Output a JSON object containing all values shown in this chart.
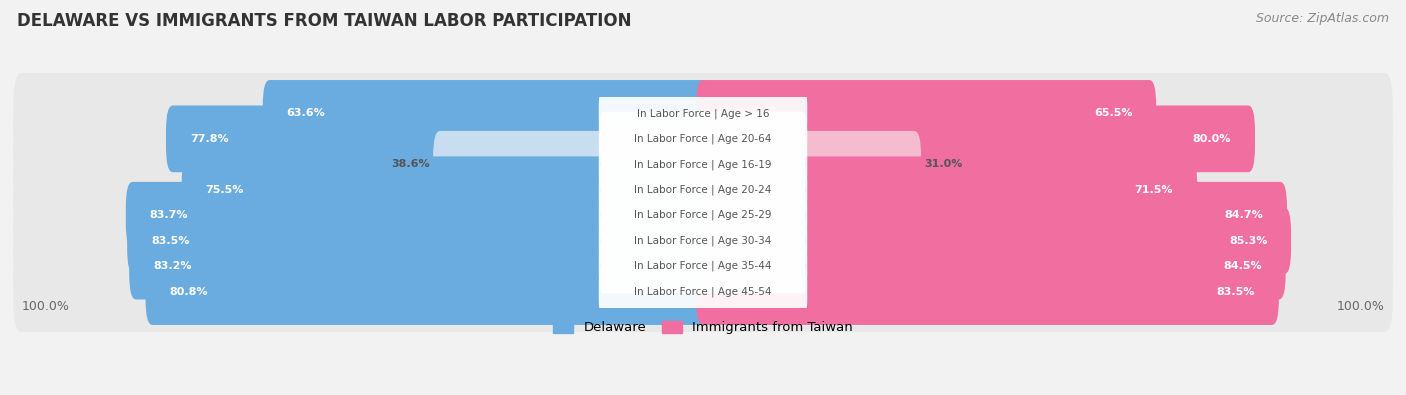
{
  "title": "DELAWARE VS IMMIGRANTS FROM TAIWAN LABOR PARTICIPATION",
  "source": "Source: ZipAtlas.com",
  "categories": [
    "In Labor Force | Age > 16",
    "In Labor Force | Age 20-64",
    "In Labor Force | Age 16-19",
    "In Labor Force | Age 20-24",
    "In Labor Force | Age 25-29",
    "In Labor Force | Age 30-34",
    "In Labor Force | Age 35-44",
    "In Labor Force | Age 45-54"
  ],
  "delaware_values": [
    63.6,
    77.8,
    38.6,
    75.5,
    83.7,
    83.5,
    83.2,
    80.8
  ],
  "taiwan_values": [
    65.5,
    80.0,
    31.0,
    71.5,
    84.7,
    85.3,
    84.5,
    83.5
  ],
  "delaware_color_strong": "#6aace0",
  "delaware_color_light": "#c8ddf0",
  "taiwan_color_strong": "#f06fa0",
  "taiwan_color_light": "#f5bcd0",
  "background_color": "#f2f2f2",
  "row_bg_color": "#e8e8e8",
  "white": "#ffffff",
  "label_white": "#ffffff",
  "label_dark": "#555555",
  "center_label_color": "#555555",
  "title_fontsize": 12,
  "source_fontsize": 9,
  "bar_label_fontsize": 8,
  "cat_label_fontsize": 7.5,
  "legend_labels": [
    "Delaware",
    "Immigrants from Taiwan"
  ],
  "axis_label_fontsize": 9,
  "max_value": 100.0
}
